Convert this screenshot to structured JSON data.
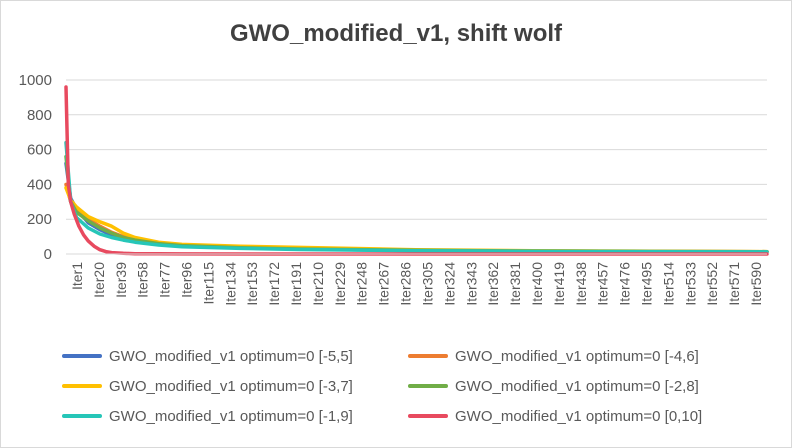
{
  "chart_data": {
    "type": "line",
    "title": "GWO_modified_v1, shift wolf",
    "xlabel": "",
    "ylabel": "",
    "ylim": [
      0,
      1000
    ],
    "yticks": [
      0,
      200,
      400,
      600,
      800,
      1000
    ],
    "x_tick_labels": [
      "Iter1",
      "Iter20",
      "Iter39",
      "Iter58",
      "Iter77",
      "Iter96",
      "Iter115",
      "Iter134",
      "Iter153",
      "Iter172",
      "Iter191",
      "Iter210",
      "Iter229",
      "Iter248",
      "Iter267",
      "Iter286",
      "Iter305",
      "Iter324",
      "Iter343",
      "Iter362",
      "Iter381",
      "Iter400",
      "Iter419",
      "Iter438",
      "Iter457",
      "Iter476",
      "Iter495",
      "Iter514",
      "Iter533",
      "Iter552",
      "Iter571",
      "Iter590"
    ],
    "x_range": [
      1,
      600
    ],
    "grid": "horizontal",
    "legend_position": "bottom",
    "series": [
      {
        "name": "GWO_modified_v1 optimum=0 [-5,5]",
        "color": "#4472C4",
        "x": [
          1,
          5,
          10,
          20,
          30,
          40,
          50,
          60,
          80,
          100,
          150,
          200,
          300,
          400,
          500,
          600
        ],
        "values": [
          520,
          320,
          260,
          180,
          140,
          110,
          90,
          75,
          57,
          45,
          35,
          28,
          20,
          16,
          14,
          13
        ]
      },
      {
        "name": "GWO_modified_v1 optimum=0 [-4,6]",
        "color": "#ED7D31",
        "x": [
          1,
          5,
          10,
          20,
          30,
          40,
          50,
          60,
          80,
          100,
          150,
          200,
          300,
          400,
          500,
          600
        ],
        "values": [
          400,
          300,
          255,
          200,
          160,
          125,
          100,
          85,
          62,
          50,
          38,
          30,
          22,
          17,
          15,
          13
        ]
      },
      {
        "name": "GWO_modified_v1 optimum=0 [-3,7]",
        "color": "#FFC000",
        "x": [
          1,
          5,
          10,
          20,
          30,
          40,
          50,
          60,
          80,
          100,
          150,
          200,
          300,
          400,
          500,
          600
        ],
        "values": [
          380,
          310,
          270,
          215,
          185,
          160,
          120,
          95,
          68,
          55,
          45,
          38,
          25,
          19,
          16,
          14
        ]
      },
      {
        "name": "GWO_modified_v1 optimum=0 [-2,8]",
        "color": "#70AD47",
        "x": [
          1,
          5,
          10,
          20,
          30,
          40,
          50,
          60,
          80,
          100,
          150,
          200,
          300,
          400,
          500,
          600
        ],
        "values": [
          560,
          300,
          240,
          190,
          150,
          120,
          95,
          80,
          60,
          48,
          36,
          29,
          21,
          17,
          15,
          13
        ]
      },
      {
        "name": "GWO_modified_v1 optimum=0 [-1,9]",
        "color": "#26C6B8",
        "x": [
          1,
          5,
          10,
          20,
          30,
          40,
          50,
          60,
          80,
          100,
          150,
          200,
          300,
          400,
          500,
          600
        ],
        "values": [
          640,
          300,
          210,
          150,
          115,
          95,
          80,
          68,
          52,
          42,
          32,
          26,
          19,
          15,
          13,
          12
        ]
      },
      {
        "name": "GWO_modified_v1 optimum=0 [0,10]",
        "color": "#E84A5F",
        "x": [
          1,
          3,
          5,
          8,
          12,
          16,
          20,
          25,
          30,
          35,
          40,
          50,
          60,
          80,
          100,
          200,
          300,
          400,
          500,
          600
        ],
        "values": [
          960,
          400,
          300,
          230,
          160,
          110,
          75,
          45,
          25,
          14,
          8,
          4,
          2,
          1,
          0.5,
          0,
          0,
          0,
          0,
          0
        ]
      }
    ]
  }
}
